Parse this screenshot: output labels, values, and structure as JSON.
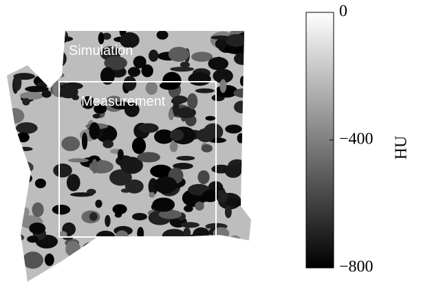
{
  "image": {
    "labels": [
      "Simulation",
      "Measurement"
    ]
  },
  "colorbar": {
    "label": "HU",
    "lim": [
      -800,
      0
    ],
    "ticks": [
      0,
      {
        "value": -400,
        "label": "−400"
      },
      {
        "value": -800,
        "label": "−800"
      }
    ]
  }
}
